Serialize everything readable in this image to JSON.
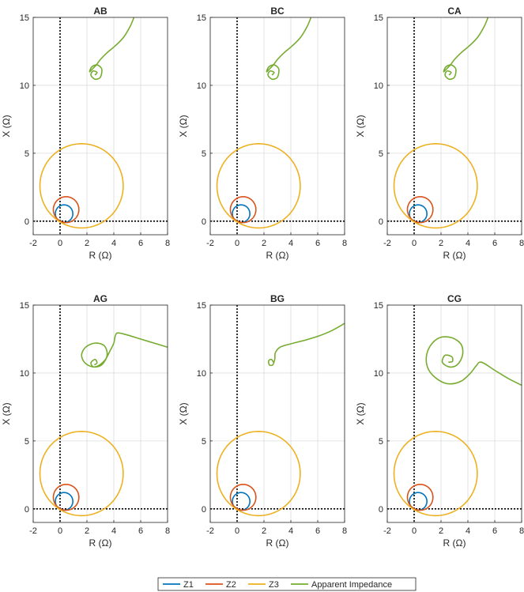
{
  "chart_data": {
    "type": "line",
    "xlabel": "R (Ω)",
    "ylabel": "X (Ω)",
    "xlim": [
      -2,
      8
    ],
    "ylim": [
      -1,
      15
    ],
    "xticks": [
      "-2",
      "0",
      "2",
      "4",
      "6",
      "8"
    ],
    "yticks": [
      "0",
      "5",
      "10",
      "15"
    ],
    "grid": true,
    "legend_position": "bottom-center",
    "legend": [
      {
        "name": "Z1",
        "color": "#0072BD"
      },
      {
        "name": "Z2",
        "color": "#D95319"
      },
      {
        "name": "Z3",
        "color": "#EDB120"
      },
      {
        "name": "Apparent Impedance",
        "color": "#77AC30"
      }
    ],
    "zones": [
      {
        "name": "Z1",
        "center": [
          0.3,
          0.55
        ],
        "radius": 0.65
      },
      {
        "name": "Z2",
        "center": [
          0.45,
          0.85
        ],
        "radius": 0.95
      },
      {
        "name": "Z3",
        "center": [
          1.6,
          2.6
        ],
        "radius": 3.1
      }
    ],
    "panels": [
      {
        "title": "AB",
        "series": [
          {
            "name": "Apparent Impedance",
            "points": [
              [
                5.5,
                15.0
              ],
              [
                5.2,
                14.3
              ],
              [
                4.7,
                13.5
              ],
              [
                4.1,
                12.9
              ],
              [
                3.5,
                12.4
              ],
              [
                3.0,
                11.9
              ],
              [
                2.7,
                11.5
              ],
              [
                2.4,
                11.2
              ],
              [
                2.2,
                11.0
              ],
              [
                2.35,
                11.35
              ],
              [
                2.75,
                11.5
              ],
              [
                3.1,
                11.2
              ],
              [
                3.0,
                10.6
              ],
              [
                2.6,
                10.45
              ],
              [
                2.3,
                10.75
              ],
              [
                2.45,
                11.05
              ],
              [
                2.75,
                10.95
              ],
              [
                2.6,
                10.75
              ]
            ]
          }
        ]
      },
      {
        "title": "BC",
        "series": [
          {
            "name": "Apparent Impedance",
            "points": [
              [
                5.5,
                15.0
              ],
              [
                5.2,
                14.3
              ],
              [
                4.7,
                13.5
              ],
              [
                4.1,
                12.9
              ],
              [
                3.5,
                12.4
              ],
              [
                3.0,
                11.9
              ],
              [
                2.7,
                11.5
              ],
              [
                2.4,
                11.2
              ],
              [
                2.2,
                11.0
              ],
              [
                2.35,
                11.35
              ],
              [
                2.75,
                11.5
              ],
              [
                3.1,
                11.2
              ],
              [
                3.0,
                10.6
              ],
              [
                2.6,
                10.45
              ],
              [
                2.3,
                10.75
              ],
              [
                2.45,
                11.05
              ],
              [
                2.75,
                10.95
              ],
              [
                2.6,
                10.75
              ]
            ]
          }
        ]
      },
      {
        "title": "CA",
        "series": [
          {
            "name": "Apparent Impedance",
            "points": [
              [
                5.5,
                15.0
              ],
              [
                5.2,
                14.3
              ],
              [
                4.7,
                13.5
              ],
              [
                4.1,
                12.9
              ],
              [
                3.5,
                12.4
              ],
              [
                3.0,
                11.9
              ],
              [
                2.7,
                11.5
              ],
              [
                2.4,
                11.2
              ],
              [
                2.2,
                11.0
              ],
              [
                2.35,
                11.35
              ],
              [
                2.75,
                11.5
              ],
              [
                3.1,
                11.2
              ],
              [
                3.0,
                10.6
              ],
              [
                2.6,
                10.45
              ],
              [
                2.3,
                10.75
              ],
              [
                2.45,
                11.05
              ],
              [
                2.75,
                10.95
              ],
              [
                2.6,
                10.75
              ]
            ]
          }
        ]
      },
      {
        "title": "AG",
        "series": [
          {
            "name": "Apparent Impedance",
            "points": [
              [
                8.0,
                11.9
              ],
              [
                7.0,
                12.2
              ],
              [
                6.0,
                12.5
              ],
              [
                5.0,
                12.8
              ],
              [
                4.3,
                12.95
              ],
              [
                4.1,
                12.7
              ],
              [
                4.0,
                12.2
              ],
              [
                3.7,
                11.6
              ],
              [
                3.3,
                10.9
              ],
              [
                2.6,
                10.45
              ],
              [
                1.9,
                10.7
              ],
              [
                1.6,
                11.3
              ],
              [
                1.9,
                11.9
              ],
              [
                2.6,
                12.2
              ],
              [
                3.3,
                12.0
              ],
              [
                3.5,
                11.3
              ],
              [
                3.1,
                10.6
              ],
              [
                2.5,
                10.45
              ],
              [
                2.3,
                10.75
              ],
              [
                2.6,
                11.0
              ],
              [
                2.75,
                10.75
              ],
              [
                2.55,
                10.6
              ]
            ]
          }
        ]
      },
      {
        "title": "BG",
        "series": [
          {
            "name": "Apparent Impedance",
            "points": [
              [
                8.0,
                13.65
              ],
              [
                7.0,
                13.1
              ],
              [
                6.0,
                12.7
              ],
              [
                5.0,
                12.4
              ],
              [
                4.0,
                12.15
              ],
              [
                3.2,
                11.9
              ],
              [
                2.85,
                11.5
              ],
              [
                2.8,
                11.0
              ],
              [
                2.65,
                10.6
              ],
              [
                2.4,
                10.6
              ],
              [
                2.35,
                10.9
              ],
              [
                2.55,
                11.0
              ],
              [
                2.7,
                10.8
              ]
            ]
          }
        ]
      },
      {
        "title": "CG",
        "series": [
          {
            "name": "Apparent Impedance",
            "points": [
              [
                8.0,
                9.1
              ],
              [
                7.0,
                9.6
              ],
              [
                6.0,
                10.2
              ],
              [
                5.0,
                10.8
              ],
              [
                4.6,
                10.5
              ],
              [
                4.2,
                10.0
              ],
              [
                3.5,
                9.4
              ],
              [
                2.6,
                9.2
              ],
              [
                1.8,
                9.5
              ],
              [
                1.1,
                10.2
              ],
              [
                0.9,
                11.1
              ],
              [
                1.2,
                12.0
              ],
              [
                1.9,
                12.6
              ],
              [
                2.8,
                12.6
              ],
              [
                3.5,
                12.1
              ],
              [
                3.6,
                11.3
              ],
              [
                3.2,
                10.6
              ],
              [
                2.6,
                10.45
              ],
              [
                2.1,
                10.8
              ],
              [
                2.3,
                11.3
              ],
              [
                2.8,
                11.2
              ],
              [
                2.85,
                10.85
              ],
              [
                2.55,
                10.8
              ]
            ]
          }
        ]
      }
    ]
  }
}
